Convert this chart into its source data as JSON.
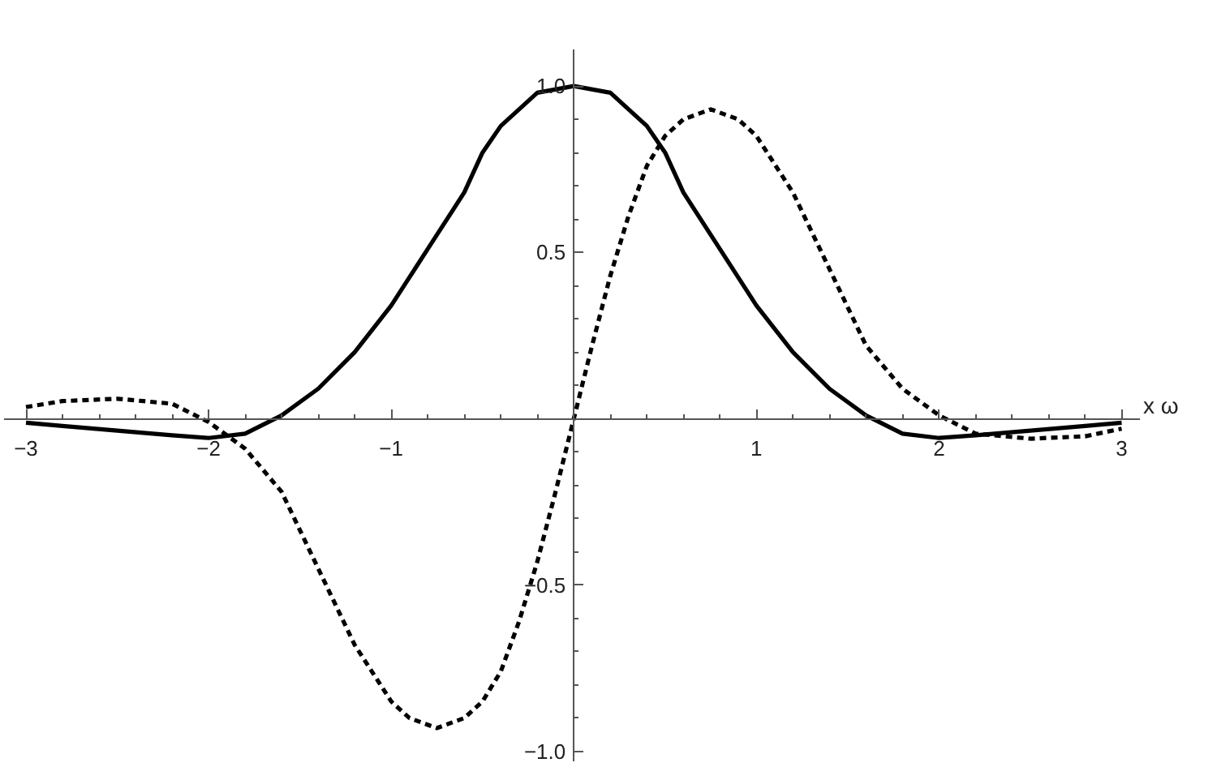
{
  "chart_data": {
    "type": "line",
    "xlabel": "x ω",
    "xlim": [
      -3.12,
      3.1
    ],
    "ylim": [
      -1.03,
      1.11
    ],
    "xticks": [
      {
        "value": -3,
        "label": "−3"
      },
      {
        "value": -2,
        "label": "−2"
      },
      {
        "value": -1,
        "label": "−1"
      },
      {
        "value": 0,
        "label": null
      },
      1,
      2,
      3
    ],
    "yticks": [
      {
        "value": -1,
        "label": "−1.0"
      },
      {
        "value": -0.5,
        "label": "−0.5"
      },
      {
        "value": 0,
        "label": null
      },
      0.5,
      {
        "value": 1,
        "label": "1.0"
      }
    ],
    "grid": false,
    "marker": "none",
    "series": [
      {
        "color": "#000000",
        "line_style": "solid",
        "x": [
          -3,
          -2.8,
          -2.5,
          -2.2,
          -2,
          -1.8,
          -1.6,
          -1.4,
          -1.2,
          -1,
          -0.8,
          -0.6,
          -0.5,
          -0.4,
          -0.2,
          0,
          0.2,
          0.4,
          0.5,
          0.6,
          0.8,
          1,
          1.2,
          1.4,
          1.6,
          1.8,
          2,
          2.2,
          2.5,
          2.8,
          3
        ],
        "values": [
          -0.012,
          -0.022,
          -0.036,
          -0.05,
          -0.058,
          -0.045,
          0.01,
          0.09,
          0.2,
          0.34,
          0.51,
          0.68,
          0.8,
          0.88,
          0.98,
          1.0,
          0.98,
          0.88,
          0.8,
          0.68,
          0.51,
          0.34,
          0.2,
          0.09,
          0.01,
          -0.045,
          -0.058,
          -0.05,
          -0.036,
          -0.022,
          -0.012
        ]
      },
      {
        "color": "#000000",
        "line_style": "dashed",
        "x": [
          -3,
          -2.8,
          -2.5,
          -2.2,
          -2,
          -1.8,
          -1.6,
          -1.4,
          -1.2,
          -1,
          -0.9,
          -0.75,
          -0.6,
          -0.5,
          -0.4,
          -0.3,
          -0.2,
          -0.1,
          0,
          0.1,
          0.2,
          0.3,
          0.4,
          0.5,
          0.6,
          0.75,
          0.9,
          1,
          1.2,
          1.4,
          1.6,
          1.8,
          2,
          2.2,
          2.5,
          2.8,
          3
        ],
        "values": [
          0.035,
          0.053,
          0.06,
          0.045,
          -0.01,
          -0.09,
          -0.22,
          -0.45,
          -0.68,
          -0.85,
          -0.9,
          -0.93,
          -0.9,
          -0.85,
          -0.76,
          -0.61,
          -0.43,
          -0.22,
          0,
          0.22,
          0.43,
          0.61,
          0.76,
          0.85,
          0.9,
          0.93,
          0.9,
          0.85,
          0.68,
          0.45,
          0.22,
          0.09,
          0.01,
          -0.045,
          -0.06,
          -0.053,
          -0.03
        ]
      }
    ]
  }
}
